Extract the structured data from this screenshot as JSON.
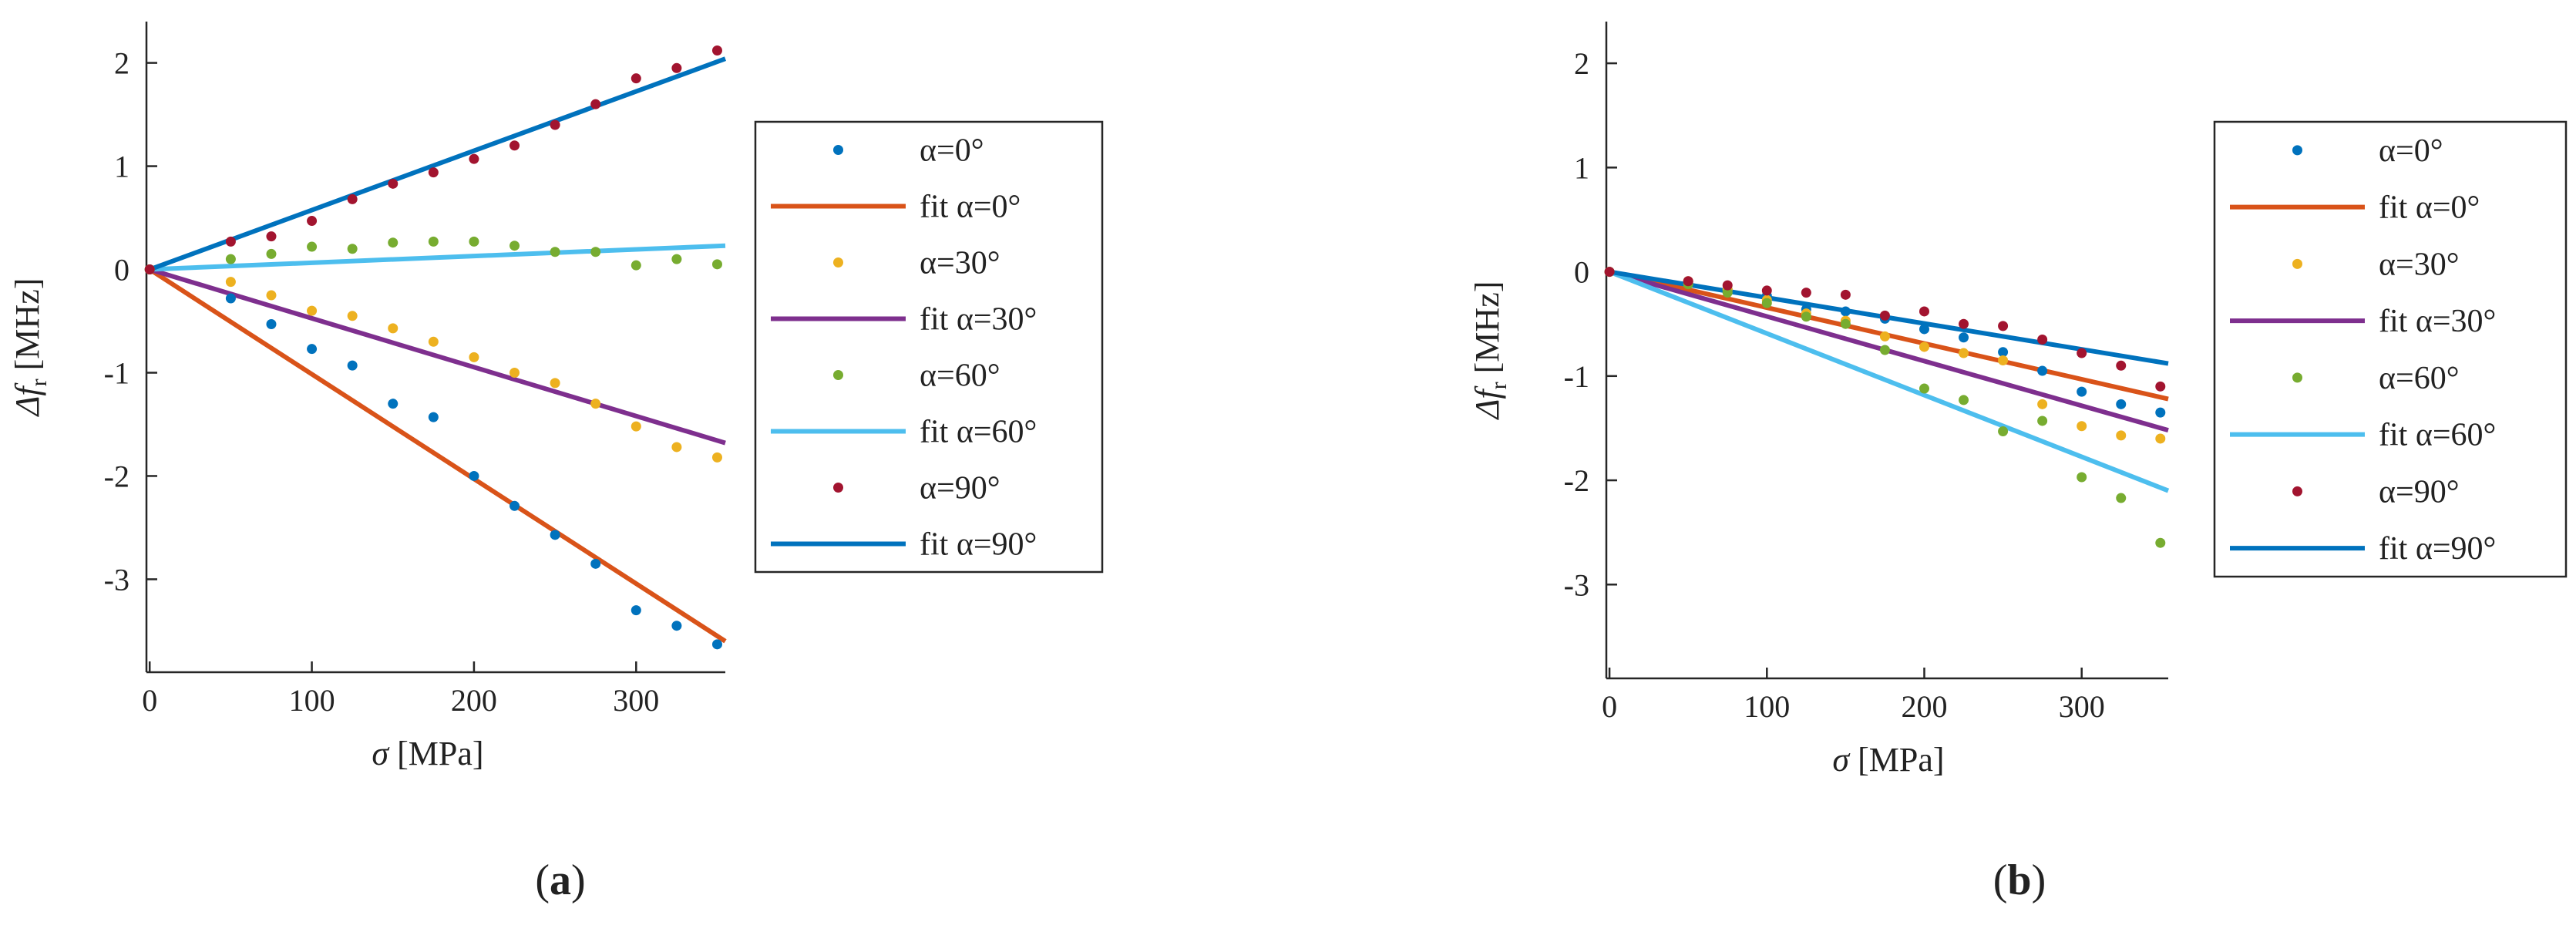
{
  "colors": {
    "c0": "#0072BD",
    "c30": "#EDB120",
    "c60": "#77AC30",
    "c90": "#A2142F",
    "f0": "#D95319",
    "f30": "#7E2F8E",
    "f60": "#4DBEEE",
    "f90": "#0072BD",
    "axis": "#262626"
  },
  "chart_data": [
    {
      "type": "scatter",
      "panel_label": "a",
      "xlabel_symbol": "σ",
      "xlabel_unit": "[MPa]",
      "ylabel_symbol": "Δf",
      "ylabel_sub": "r",
      "ylabel_unit": "[MHz]",
      "xlim": [
        -2,
        355
      ],
      "ylim": [
        -3.9,
        2.4
      ],
      "xticks": [
        0,
        100,
        200,
        300
      ],
      "yticks": [
        2,
        1,
        0,
        -1,
        -2,
        -3
      ],
      "xtick_labels": [
        "0",
        "100",
        "200",
        "300"
      ],
      "ytick_labels": [
        "2",
        "1",
        "0",
        "-1",
        "-2",
        "-3"
      ],
      "grid": false,
      "legend_position": "outside-right",
      "x": [
        0,
        50,
        75,
        100,
        125,
        150,
        175,
        200,
        225,
        250,
        275,
        300,
        325,
        350
      ],
      "series": [
        {
          "key": "c0",
          "kind": "points",
          "legend": "α=0°",
          "values": [
            0,
            -0.28,
            -0.53,
            -0.77,
            -0.93,
            -1.3,
            -1.43,
            -2.0,
            -2.29,
            -2.57,
            -2.85,
            -3.3,
            -3.45,
            -3.63
          ]
        },
        {
          "key": "f0",
          "kind": "fit",
          "legend": "fit α=0°",
          "x": [
            0,
            355
          ],
          "values": [
            0,
            -3.6
          ]
        },
        {
          "key": "c30",
          "kind": "points",
          "legend": "α=30°",
          "values": [
            0,
            -0.12,
            -0.25,
            -0.4,
            -0.45,
            -0.57,
            -0.7,
            -0.85,
            -1.0,
            -1.1,
            -1.3,
            -1.52,
            -1.72,
            -1.82
          ]
        },
        {
          "key": "f30",
          "kind": "fit",
          "legend": "fit α=30°",
          "x": [
            0,
            355
          ],
          "values": [
            0,
            -1.68
          ]
        },
        {
          "key": "c60",
          "kind": "points",
          "legend": "α=60°",
          "values": [
            0,
            0.1,
            0.15,
            0.22,
            0.2,
            0.26,
            0.27,
            0.27,
            0.23,
            0.17,
            0.17,
            0.04,
            0.1,
            0.05
          ]
        },
        {
          "key": "f60",
          "kind": "fit",
          "legend": "fit α=60°",
          "x": [
            0,
            355
          ],
          "values": [
            0,
            0.23
          ]
        },
        {
          "key": "c90",
          "kind": "points",
          "legend": "α=90°",
          "values": [
            0,
            0.27,
            0.32,
            0.47,
            0.68,
            0.83,
            0.94,
            1.07,
            1.2,
            1.4,
            1.6,
            1.85,
            1.95,
            2.12
          ]
        },
        {
          "key": "f90",
          "kind": "fit",
          "legend": "fit α=90°",
          "x": [
            0,
            355
          ],
          "values": [
            0,
            2.04
          ]
        }
      ]
    },
    {
      "type": "scatter",
      "panel_label": "b",
      "xlabel_symbol": "σ",
      "xlabel_unit": "[MPa]",
      "ylabel_symbol": "Δf",
      "ylabel_sub": "r",
      "ylabel_unit": "[MHz]",
      "xlim": [
        -2,
        355
      ],
      "ylim": [
        -3.9,
        2.4
      ],
      "xticks": [
        0,
        100,
        200,
        300
      ],
      "yticks": [
        2,
        1,
        0,
        -1,
        -2,
        -3
      ],
      "xtick_labels": [
        "0",
        "100",
        "200",
        "300"
      ],
      "ytick_labels": [
        "2",
        "1",
        "0",
        "-1",
        "-2",
        "-3"
      ],
      "grid": false,
      "legend_position": "outside-right",
      "x": [
        0,
        50,
        75,
        100,
        125,
        150,
        175,
        200,
        225,
        250,
        275,
        300,
        325,
        350
      ],
      "series": [
        {
          "key": "c0",
          "kind": "points",
          "legend": "α=0°",
          "values": [
            0,
            -0.1,
            -0.17,
            -0.23,
            -0.36,
            -0.38,
            -0.45,
            -0.55,
            -0.63,
            -0.77,
            -0.95,
            -1.15,
            -1.27,
            -1.35
          ]
        },
        {
          "key": "f0",
          "kind": "fit",
          "legend": "fit α=0°",
          "x": [
            0,
            355
          ],
          "values": [
            0,
            -1.22
          ]
        },
        {
          "key": "c30",
          "kind": "points",
          "legend": "α=30°",
          "values": [
            0,
            -0.09,
            -0.17,
            -0.27,
            -0.4,
            -0.47,
            -0.62,
            -0.72,
            -0.78,
            -0.85,
            -1.27,
            -1.48,
            -1.57,
            -1.6
          ]
        },
        {
          "key": "f30",
          "kind": "fit",
          "legend": "fit α=30°",
          "x": [
            0,
            355
          ],
          "values": [
            0,
            -1.52
          ]
        },
        {
          "key": "c60",
          "kind": "points",
          "legend": "α=60°",
          "values": [
            0,
            -0.12,
            -0.2,
            -0.3,
            -0.43,
            -0.5,
            -0.75,
            -1.12,
            -1.23,
            -1.53,
            -1.43,
            -1.97,
            -2.17,
            -2.6
          ]
        },
        {
          "key": "f60",
          "kind": "fit",
          "legend": "fit α=60°",
          "x": [
            0,
            355
          ],
          "values": [
            0,
            -2.1
          ]
        },
        {
          "key": "c90",
          "kind": "points",
          "legend": "α=90°",
          "values": [
            0,
            -0.09,
            -0.13,
            -0.18,
            -0.2,
            -0.22,
            -0.42,
            -0.38,
            -0.5,
            -0.52,
            -0.65,
            -0.78,
            -0.9,
            -1.1
          ]
        },
        {
          "key": "f90",
          "kind": "fit",
          "legend": "fit α=90°",
          "x": [
            0,
            355
          ],
          "values": [
            0,
            -0.88
          ]
        }
      ]
    }
  ]
}
